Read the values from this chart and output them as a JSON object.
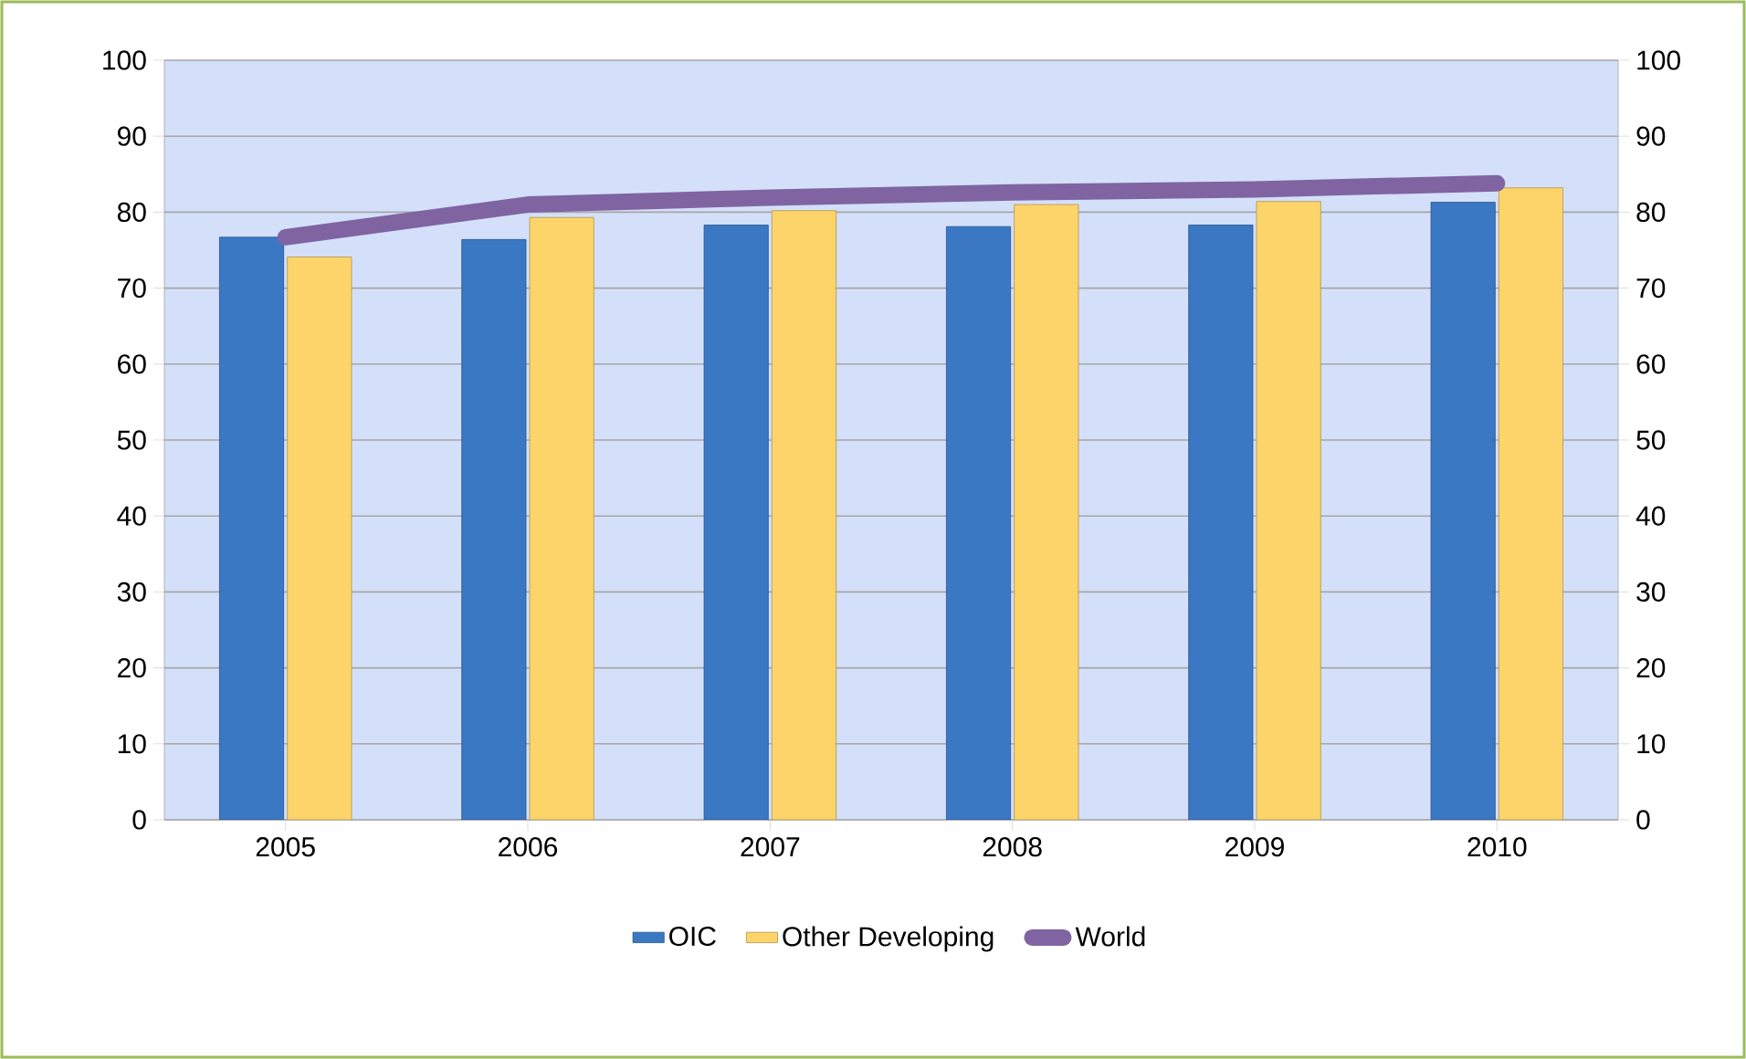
{
  "chart_data": {
    "type": "bar",
    "categories": [
      "2005",
      "2006",
      "2007",
      "2008",
      "2009",
      "2010"
    ],
    "series": [
      {
        "name": "OIC",
        "color": "#3a78c4",
        "values": [
          76.7,
          76.4,
          78.3,
          78.1,
          78.3,
          81.3
        ]
      },
      {
        "name": "Other Developing",
        "color": "#fcd46a",
        "values": [
          74.1,
          79.3,
          80.2,
          81.0,
          81.4,
          83.2
        ]
      },
      {
        "name": "World",
        "type": "line",
        "color": "#8064a2",
        "values": [
          76.7,
          81.0,
          81.9,
          82.6,
          83.0,
          83.8
        ]
      }
    ],
    "ylim": [
      0,
      100
    ],
    "yticks": [
      0,
      10,
      20,
      30,
      40,
      50,
      60,
      70,
      80,
      90,
      100
    ],
    "y2lim": [
      0,
      100
    ],
    "y2ticks": [
      0,
      10,
      20,
      30,
      40,
      50,
      60,
      70,
      80,
      90,
      100
    ],
    "grid": "y",
    "legend": "bottom"
  }
}
